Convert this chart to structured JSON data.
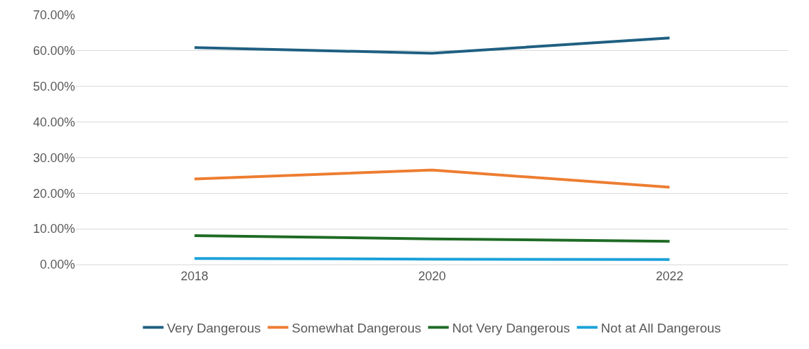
{
  "chart_data": {
    "type": "line",
    "categories": [
      "2018",
      "2020",
      "2022"
    ],
    "series": [
      {
        "name": "Very Dangerous",
        "color": "#1f5f82",
        "values": [
          60.9,
          59.3,
          63.6
        ]
      },
      {
        "name": "Somewhat Dangerous",
        "color": "#ed7d31",
        "values": [
          24.0,
          26.5,
          21.7
        ]
      },
      {
        "name": "Not Very Dangerous",
        "color": "#1e6b24",
        "values": [
          8.1,
          7.2,
          6.5
        ]
      },
      {
        "name": "Not at All Dangerous",
        "color": "#1ba1d9",
        "values": [
          1.7,
          1.5,
          1.4
        ]
      }
    ],
    "ylim": [
      0,
      70
    ],
    "yticks": [
      {
        "value": 0,
        "label": "0.00%"
      },
      {
        "value": 10,
        "label": "10.00%"
      },
      {
        "value": 20,
        "label": "20.00%"
      },
      {
        "value": 30,
        "label": "30.00%"
      },
      {
        "value": 40,
        "label": "40.00%"
      },
      {
        "value": 50,
        "label": "50.00%"
      },
      {
        "value": 60,
        "label": "60.00%"
      },
      {
        "value": 70,
        "label": "70.00%"
      }
    ],
    "grid": "y",
    "legend": "bottom",
    "marker": "none",
    "line_style": "solid"
  }
}
